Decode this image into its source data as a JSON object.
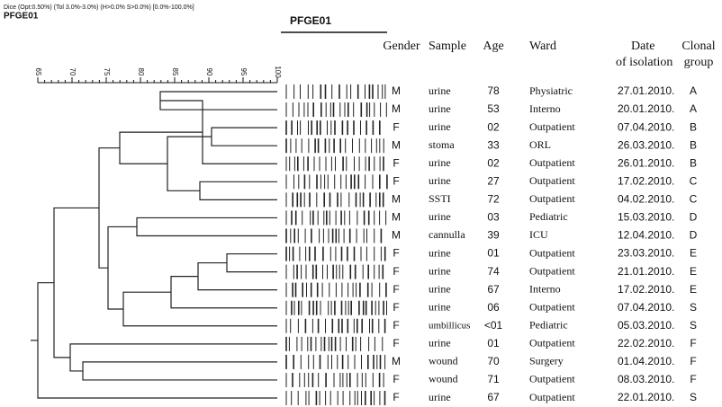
{
  "header": {
    "method": "Dice (Opt:0.50%) (Tol 3.0%-3.0%) (H>0.0% S>0.0%) [0.0%-100.0%]",
    "name": "PFGE01",
    "gel_title": "PFGE01"
  },
  "scale": {
    "ticks": [
      "65",
      "70",
      "75",
      "80",
      "85",
      "90",
      "95",
      "100"
    ]
  },
  "table": {
    "columns": [
      [
        "Gender"
      ],
      [
        "Sample"
      ],
      [
        "Age"
      ],
      [
        "Ward"
      ],
      [
        "Date",
        "of isolation"
      ],
      [
        "Clonal",
        "group"
      ]
    ],
    "rows": [
      [
        "M",
        "urine",
        "78",
        "Physiatric",
        "27.01.2010.",
        "A"
      ],
      [
        "M",
        "urine",
        "53",
        "Interno",
        "20.01.2010.",
        "A"
      ],
      [
        "F",
        "urine",
        "02",
        "Outpatient",
        "07.04.2010.",
        "B"
      ],
      [
        "M",
        "stoma",
        "33",
        "ORL",
        "26.03.2010.",
        "B"
      ],
      [
        "F",
        "urine",
        "02",
        "Outpatient",
        "26.01.2010.",
        "B"
      ],
      [
        "F",
        "urine",
        "27",
        "Outpatient",
        "17.02.2010.",
        "C"
      ],
      [
        "M",
        "SSTI",
        "72",
        "Outpatient",
        "04.02.2010.",
        "C"
      ],
      [
        "M",
        "urine",
        "03",
        "Pediatric",
        "15.03.2010.",
        "D"
      ],
      [
        "M",
        "cannulla",
        "39",
        "ICU",
        "12.04.2010.",
        "D"
      ],
      [
        "F",
        "urine",
        "01",
        "Outpatient",
        "23.03.2010.",
        "E"
      ],
      [
        "F",
        "urine",
        "74",
        "Outpatient",
        "21.01.2010.",
        "E"
      ],
      [
        "F",
        "urine",
        "67",
        "Interno",
        "17.02.2010.",
        "E"
      ],
      [
        "F",
        "urine",
        "06",
        "Outpatient",
        "07.04.2010.",
        "S"
      ],
      [
        "F",
        "umbillicus",
        "<01",
        "Pediatric",
        "05.03.2010.",
        "S"
      ],
      [
        "F",
        "urine",
        "01",
        "Outpatient",
        "22.02.2010.",
        "F"
      ],
      [
        "M",
        "wound",
        "70",
        "Surgery",
        "01.04.2010.",
        "F"
      ],
      [
        "F",
        "wound",
        "71",
        "Outpatient",
        "08.03.2010.",
        "F"
      ],
      [
        "F",
        "urine",
        "67",
        "Outpatient",
        "22.01.2010.",
        "S"
      ]
    ]
  }
}
